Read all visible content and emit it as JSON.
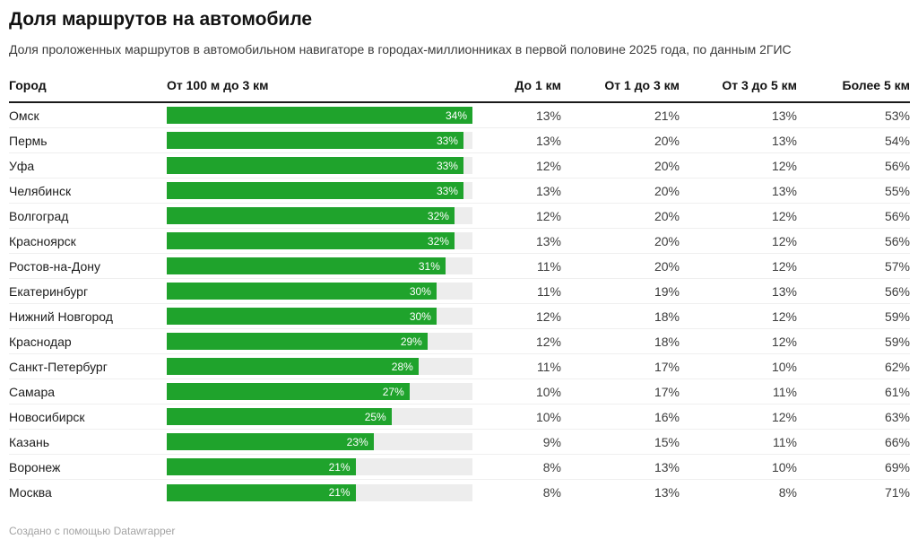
{
  "title": "Доля маршрутов на автомобиле",
  "subtitle": "Доля проложенных маршрутов в автомобильном навигаторе в городах-миллионниках в первой половине 2025 года, по данным 2ГИС",
  "columns": {
    "city": "Город",
    "bar": "От 100 м до 3 км",
    "to_1km": "До 1 км",
    "from_1_to_3km": "От 1 до 3 км",
    "from_3_to_5km": "От 3 до 5 км",
    "more_5km": "Более 5 км"
  },
  "bar_axis_max": 34,
  "colors": {
    "bar_fill": "#1fa32c",
    "bar_track": "#ededed",
    "bar_label": "#ffffff",
    "header_rule": "#1a1a1a",
    "row_separator": "#efefef",
    "footer_text": "#a3a3a3"
  },
  "rows": [
    {
      "city": "Омск",
      "bar_value": 34,
      "bar_label": "34%",
      "to_1km": "13%",
      "from_1_to_3km": "21%",
      "from_3_to_5km": "13%",
      "more_5km": "53%"
    },
    {
      "city": "Пермь",
      "bar_value": 33,
      "bar_label": "33%",
      "to_1km": "13%",
      "from_1_to_3km": "20%",
      "from_3_to_5km": "13%",
      "more_5km": "54%"
    },
    {
      "city": "Уфа",
      "bar_value": 33,
      "bar_label": "33%",
      "to_1km": "12%",
      "from_1_to_3km": "20%",
      "from_3_to_5km": "12%",
      "more_5km": "56%"
    },
    {
      "city": "Челябинск",
      "bar_value": 33,
      "bar_label": "33%",
      "to_1km": "13%",
      "from_1_to_3km": "20%",
      "from_3_to_5km": "13%",
      "more_5km": "55%"
    },
    {
      "city": "Волгоград",
      "bar_value": 32,
      "bar_label": "32%",
      "to_1km": "12%",
      "from_1_to_3km": "20%",
      "from_3_to_5km": "12%",
      "more_5km": "56%"
    },
    {
      "city": "Красноярск",
      "bar_value": 32,
      "bar_label": "32%",
      "to_1km": "13%",
      "from_1_to_3km": "20%",
      "from_3_to_5km": "12%",
      "more_5km": "56%"
    },
    {
      "city": "Ростов-на-Дону",
      "bar_value": 31,
      "bar_label": "31%",
      "to_1km": "11%",
      "from_1_to_3km": "20%",
      "from_3_to_5km": "12%",
      "more_5km": "57%"
    },
    {
      "city": "Екатеринбург",
      "bar_value": 30,
      "bar_label": "30%",
      "to_1km": "11%",
      "from_1_to_3km": "19%",
      "from_3_to_5km": "13%",
      "more_5km": "56%"
    },
    {
      "city": "Нижний Новгород",
      "bar_value": 30,
      "bar_label": "30%",
      "to_1km": "12%",
      "from_1_to_3km": "18%",
      "from_3_to_5km": "12%",
      "more_5km": "59%"
    },
    {
      "city": "Краснодар",
      "bar_value": 29,
      "bar_label": "29%",
      "to_1km": "12%",
      "from_1_to_3km": "18%",
      "from_3_to_5km": "12%",
      "more_5km": "59%"
    },
    {
      "city": "Санкт-Петербург",
      "bar_value": 28,
      "bar_label": "28%",
      "to_1km": "11%",
      "from_1_to_3km": "17%",
      "from_3_to_5km": "10%",
      "more_5km": "62%"
    },
    {
      "city": "Самара",
      "bar_value": 27,
      "bar_label": "27%",
      "to_1km": "10%",
      "from_1_to_3km": "17%",
      "from_3_to_5km": "11%",
      "more_5km": "61%"
    },
    {
      "city": "Новосибирск",
      "bar_value": 25,
      "bar_label": "25%",
      "to_1km": "10%",
      "from_1_to_3km": "16%",
      "from_3_to_5km": "12%",
      "more_5km": "63%"
    },
    {
      "city": "Казань",
      "bar_value": 23,
      "bar_label": "23%",
      "to_1km": "9%",
      "from_1_to_3km": "15%",
      "from_3_to_5km": "11%",
      "more_5km": "66%"
    },
    {
      "city": "Воронеж",
      "bar_value": 21,
      "bar_label": "21%",
      "to_1km": "8%",
      "from_1_to_3km": "13%",
      "from_3_to_5km": "10%",
      "more_5km": "69%"
    },
    {
      "city": "Москва",
      "bar_value": 21,
      "bar_label": "21%",
      "to_1km": "8%",
      "from_1_to_3km": "13%",
      "from_3_to_5km": "8%",
      "more_5km": "71%"
    }
  ],
  "footer": {
    "attribution": "Создано с помощью Datawrapper"
  },
  "chart_data": {
    "type": "table",
    "title": "Доля маршрутов на автомобиле",
    "subtitle": "Доля проложенных маршрутов в автомобильном навигаторе в городах-миллионниках в первой половине 2025 года, по данным 2ГИС",
    "columns": [
      "Город",
      "От 100 м до 3 км",
      "До 1 км",
      "От 1 до 3 км",
      "От 3 до 5 км",
      "Более 5 км"
    ],
    "bar_column": "От 100 м до 3 км",
    "bar_axis_range": [
      0,
      34
    ],
    "bar_color": "#1fa32c",
    "rows": [
      [
        "Омск",
        34,
        13,
        21,
        13,
        53
      ],
      [
        "Пермь",
        33,
        13,
        20,
        13,
        54
      ],
      [
        "Уфа",
        33,
        12,
        20,
        12,
        56
      ],
      [
        "Челябинск",
        33,
        13,
        20,
        13,
        55
      ],
      [
        "Волгоград",
        32,
        12,
        20,
        12,
        56
      ],
      [
        "Красноярск",
        32,
        13,
        20,
        12,
        56
      ],
      [
        "Ростов-на-Дону",
        31,
        11,
        20,
        12,
        57
      ],
      [
        "Екатеринбург",
        30,
        11,
        19,
        13,
        56
      ],
      [
        "Нижний Новгород",
        30,
        12,
        18,
        12,
        59
      ],
      [
        "Краснодар",
        29,
        12,
        18,
        12,
        59
      ],
      [
        "Санкт-Петербург",
        28,
        11,
        17,
        10,
        62
      ],
      [
        "Самара",
        27,
        10,
        17,
        11,
        61
      ],
      [
        "Новосибирск",
        25,
        10,
        16,
        12,
        63
      ],
      [
        "Казань",
        23,
        9,
        15,
        11,
        66
      ],
      [
        "Воронеж",
        21,
        8,
        13,
        10,
        69
      ],
      [
        "Москва",
        21,
        8,
        13,
        8,
        71
      ]
    ]
  }
}
